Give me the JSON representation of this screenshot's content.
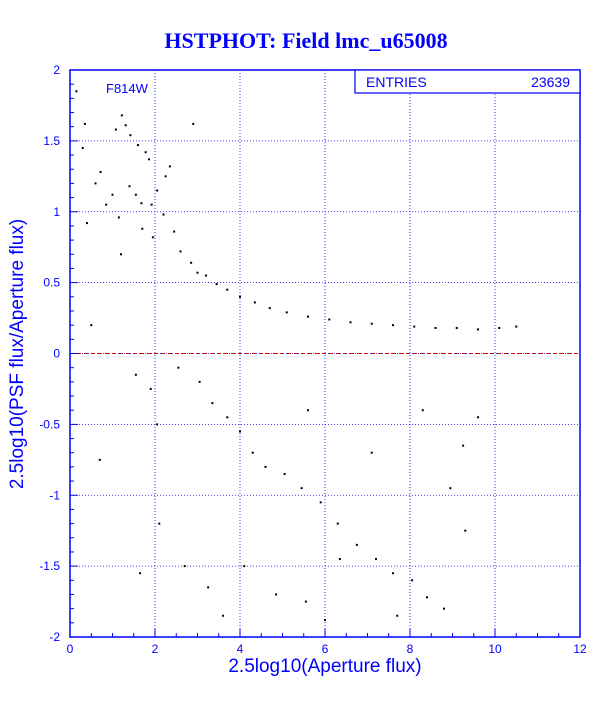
{
  "chart_data": {
    "type": "scatter",
    "title": "HSTPHOT: Field lmc_u65008",
    "xlabel": "2.5log10(Aperture flux)",
    "ylabel": "2.5log10(PSF flux/Aperture flux)",
    "xlim": [
      0,
      12
    ],
    "ylim": [
      -2,
      2
    ],
    "x_ticks": [
      0,
      2,
      4,
      6,
      8,
      10,
      12
    ],
    "y_ticks": [
      -2,
      -1.5,
      -1,
      -0.5,
      0,
      0.5,
      1,
      1.5,
      2
    ],
    "x_tick_labels": [
      "0",
      "2",
      "4",
      "6",
      "8",
      "10",
      "12"
    ],
    "y_tick_labels": [
      "-2",
      "-1.5",
      "-1",
      "-0.5",
      "0",
      "0.5",
      "1",
      "1.5",
      "2"
    ],
    "grid": true,
    "reference_line": {
      "y": 0,
      "color": "#cc0000",
      "style": "dashed"
    },
    "annotation": "F814W",
    "stats_box": {
      "label": "ENTRIES",
      "value": "23639"
    },
    "series": [
      {
        "points": [
          [
            0.15,
            1.85
          ],
          [
            0.35,
            1.62
          ],
          [
            0.72,
            1.28
          ],
          [
            1.08,
            1.58
          ],
          [
            1.22,
            1.68
          ],
          [
            1.31,
            1.61
          ],
          [
            1.42,
            1.54
          ],
          [
            1.6,
            1.47
          ],
          [
            1.78,
            1.42
          ],
          [
            1.86,
            1.37
          ],
          [
            0.6,
            1.2
          ],
          [
            1.0,
            1.12
          ],
          [
            1.4,
            1.18
          ],
          [
            1.55,
            1.12
          ],
          [
            1.68,
            1.06
          ],
          [
            1.92,
            1.05
          ],
          [
            2.05,
            1.15
          ],
          [
            2.25,
            1.25
          ],
          [
            2.35,
            1.32
          ],
          [
            0.4,
            0.92
          ],
          [
            1.15,
            0.96
          ],
          [
            1.7,
            0.88
          ],
          [
            1.95,
            0.82
          ],
          [
            2.2,
            0.98
          ],
          [
            2.45,
            0.86
          ],
          [
            2.6,
            0.72
          ],
          [
            2.85,
            0.64
          ],
          [
            3.0,
            0.57
          ],
          [
            3.2,
            0.55
          ],
          [
            3.45,
            0.49
          ],
          [
            3.7,
            0.45
          ],
          [
            4.0,
            0.4
          ],
          [
            4.35,
            0.36
          ],
          [
            4.7,
            0.32
          ],
          [
            5.1,
            0.29
          ],
          [
            5.6,
            0.26
          ],
          [
            6.1,
            0.24
          ],
          [
            6.6,
            0.22
          ],
          [
            7.1,
            0.21
          ],
          [
            7.6,
            0.2
          ],
          [
            8.1,
            0.19
          ],
          [
            8.6,
            0.18
          ],
          [
            9.1,
            0.18
          ],
          [
            9.6,
            0.17
          ],
          [
            10.1,
            0.18
          ],
          [
            10.5,
            0.19
          ],
          [
            2.9,
            1.62
          ],
          [
            2.55,
            -0.1
          ],
          [
            3.05,
            -0.2
          ],
          [
            3.35,
            -0.35
          ],
          [
            3.7,
            -0.45
          ],
          [
            4.0,
            -0.55
          ],
          [
            4.3,
            -0.7
          ],
          [
            4.6,
            -0.8
          ],
          [
            5.05,
            -0.85
          ],
          [
            5.45,
            -0.95
          ],
          [
            5.9,
            -1.05
          ],
          [
            6.3,
            -1.2
          ],
          [
            6.75,
            -1.35
          ],
          [
            7.2,
            -1.45
          ],
          [
            7.6,
            -1.55
          ],
          [
            8.05,
            -1.6
          ],
          [
            8.4,
            -1.72
          ],
          [
            8.8,
            -1.8
          ],
          [
            2.7,
            -1.5
          ],
          [
            3.25,
            -1.65
          ],
          [
            4.1,
            -1.5
          ],
          [
            4.85,
            -1.7
          ],
          [
            5.55,
            -1.75
          ],
          [
            6.35,
            -1.45
          ],
          [
            7.7,
            -1.85
          ],
          [
            8.95,
            -0.95
          ],
          [
            9.25,
            -0.65
          ],
          [
            9.3,
            -1.25
          ],
          [
            9.6,
            -0.45
          ],
          [
            0.7,
            -0.75
          ],
          [
            1.55,
            -0.15
          ],
          [
            1.65,
            -1.55
          ],
          [
            2.1,
            -1.2
          ],
          [
            2.05,
            -0.5
          ],
          [
            0.3,
            1.45
          ],
          [
            0.85,
            1.05
          ],
          [
            0.5,
            0.2
          ],
          [
            1.2,
            0.7
          ],
          [
            1.9,
            -0.25
          ],
          [
            6.0,
            -1.88
          ],
          [
            3.6,
            -1.85
          ],
          [
            8.3,
            -0.4
          ],
          [
            7.1,
            -0.7
          ],
          [
            5.6,
            -0.4
          ]
        ]
      }
    ]
  }
}
